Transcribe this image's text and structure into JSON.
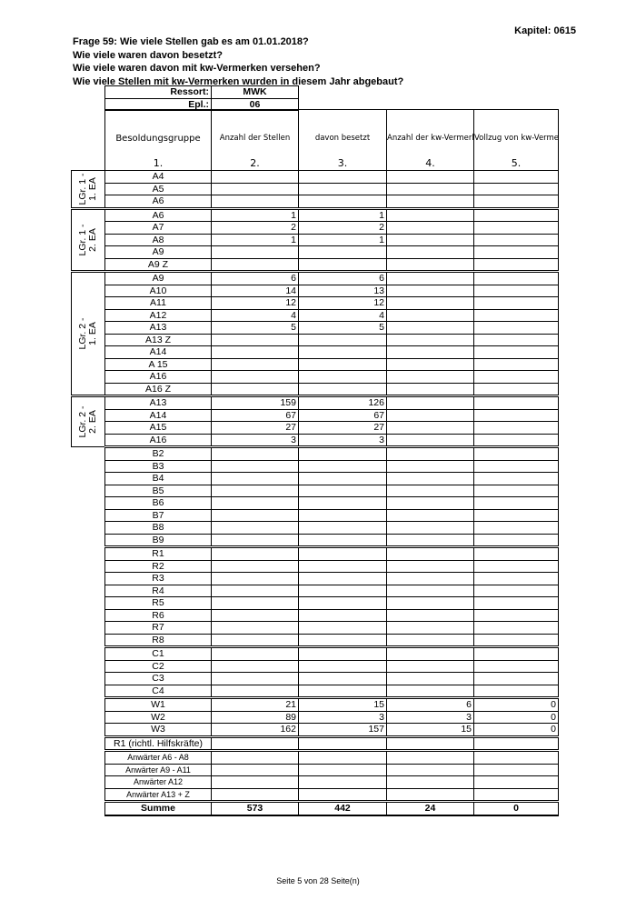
{
  "chapter": "Kapitel: 0615",
  "questions": [
    "Frage 59:  Wie viele Stellen gab es am 01.01.2018?",
    "Wie viele waren davon besetzt?",
    "Wie viele waren davon mit kw-Vermerken versehen?",
    "Wie viele Stellen mit kw-Vermerken wurden in diesem Jahr abgebaut?"
  ],
  "meta": {
    "ressort_label": "Ressort:",
    "ressort": "MWK",
    "epl_label": "Epl.:",
    "epl": "06"
  },
  "columns": [
    {
      "title": "Besoldungsgruppe",
      "num": "1."
    },
    {
      "title": "Anzahl der Stellen",
      "num": "2."
    },
    {
      "title": "davon besetzt",
      "num": "3."
    },
    {
      "title": "Anzahl der kw-Vermerken",
      "num": "4."
    },
    {
      "title": "Vollzug von kw-Vermerken im Jahresverlauf",
      "num": "5."
    }
  ],
  "sections": [
    {
      "group": "LGr. 1 -\n1. EA",
      "rows": [
        [
          "A4",
          "",
          "",
          "",
          ""
        ],
        [
          "A5",
          "",
          "",
          "",
          ""
        ],
        [
          "A6",
          "",
          "",
          "",
          ""
        ]
      ]
    },
    {
      "group": "LGr. 1 -\n2. EA",
      "rows": [
        [
          "A6",
          "1",
          "1",
          "",
          ""
        ],
        [
          "A7",
          "2",
          "2",
          "",
          ""
        ],
        [
          "A8",
          "1",
          "1",
          "",
          ""
        ],
        [
          "A9",
          "",
          "",
          "",
          ""
        ],
        [
          "A9 Z",
          "",
          "",
          "",
          ""
        ]
      ]
    },
    {
      "group": "LGr. 2 -\n1. EA",
      "rows": [
        [
          "A9",
          "6",
          "6",
          "",
          ""
        ],
        [
          "A10",
          "14",
          "13",
          "",
          ""
        ],
        [
          "A11",
          "12",
          "12",
          "",
          ""
        ],
        [
          "A12",
          "4",
          "4",
          "",
          ""
        ],
        [
          "A13",
          "5",
          "5",
          "",
          ""
        ],
        [
          "A13 Z",
          "",
          "",
          "",
          ""
        ],
        [
          "A14",
          "",
          "",
          "",
          ""
        ],
        [
          "A 15",
          "",
          "",
          "",
          ""
        ],
        [
          "A16",
          "",
          "",
          "",
          ""
        ],
        [
          "A16 Z",
          "",
          "",
          "",
          ""
        ]
      ]
    },
    {
      "group": "LGr. 2 -\n2. EA",
      "rows": [
        [
          "A13",
          "159",
          "126",
          "",
          ""
        ],
        [
          "A14",
          "67",
          "67",
          "",
          ""
        ],
        [
          "A15",
          "27",
          "27",
          "",
          ""
        ],
        [
          "A16",
          "3",
          "3",
          "",
          ""
        ]
      ]
    },
    {
      "group": "",
      "rows": [
        [
          "B2",
          "",
          "",
          "",
          ""
        ],
        [
          "B3",
          "",
          "",
          "",
          ""
        ],
        [
          "B4",
          "",
          "",
          "",
          ""
        ],
        [
          "B5",
          "",
          "",
          "",
          ""
        ],
        [
          "B6",
          "",
          "",
          "",
          ""
        ],
        [
          "B7",
          "",
          "",
          "",
          ""
        ],
        [
          "B8",
          "",
          "",
          "",
          ""
        ],
        [
          "B9",
          "",
          "",
          "",
          ""
        ]
      ]
    },
    {
      "group": "",
      "rows": [
        [
          "R1",
          "",
          "",
          "",
          ""
        ],
        [
          "R2",
          "",
          "",
          "",
          ""
        ],
        [
          "R3",
          "",
          "",
          "",
          ""
        ],
        [
          "R4",
          "",
          "",
          "",
          ""
        ],
        [
          "R5",
          "",
          "",
          "",
          ""
        ],
        [
          "R6",
          "",
          "",
          "",
          ""
        ],
        [
          "R7",
          "",
          "",
          "",
          ""
        ],
        [
          "R8",
          "",
          "",
          "",
          ""
        ]
      ]
    },
    {
      "group": "",
      "rows": [
        [
          "C1",
          "",
          "",
          "",
          ""
        ],
        [
          "C2",
          "",
          "",
          "",
          ""
        ],
        [
          "C3",
          "",
          "",
          "",
          ""
        ],
        [
          "C4",
          "",
          "",
          "",
          ""
        ]
      ]
    },
    {
      "group": "",
      "rows": [
        [
          "W1",
          "21",
          "15",
          "6",
          "0"
        ],
        [
          "W2",
          "89",
          "3",
          "3",
          "0"
        ],
        [
          "W3",
          "162",
          "157",
          "15",
          "0"
        ]
      ]
    },
    {
      "group": "",
      "rows": [
        [
          "R1 (richtl. Hilfskräfte)",
          "",
          "",
          "",
          ""
        ]
      ]
    },
    {
      "group": "",
      "small": true,
      "rows": [
        [
          "Anwärter A6 - A8",
          "",
          "",
          "",
          ""
        ],
        [
          "Anwärter A9 - A11",
          "",
          "",
          "",
          ""
        ],
        [
          "Anwärter A12",
          "",
          "",
          "",
          ""
        ],
        [
          "Anwärter A13 + Z",
          "",
          "",
          "",
          ""
        ]
      ]
    }
  ],
  "sum": [
    "Summe",
    "573",
    "442",
    "24",
    "0"
  ],
  "footer": "Seite 5 von 28 Seite(n)"
}
